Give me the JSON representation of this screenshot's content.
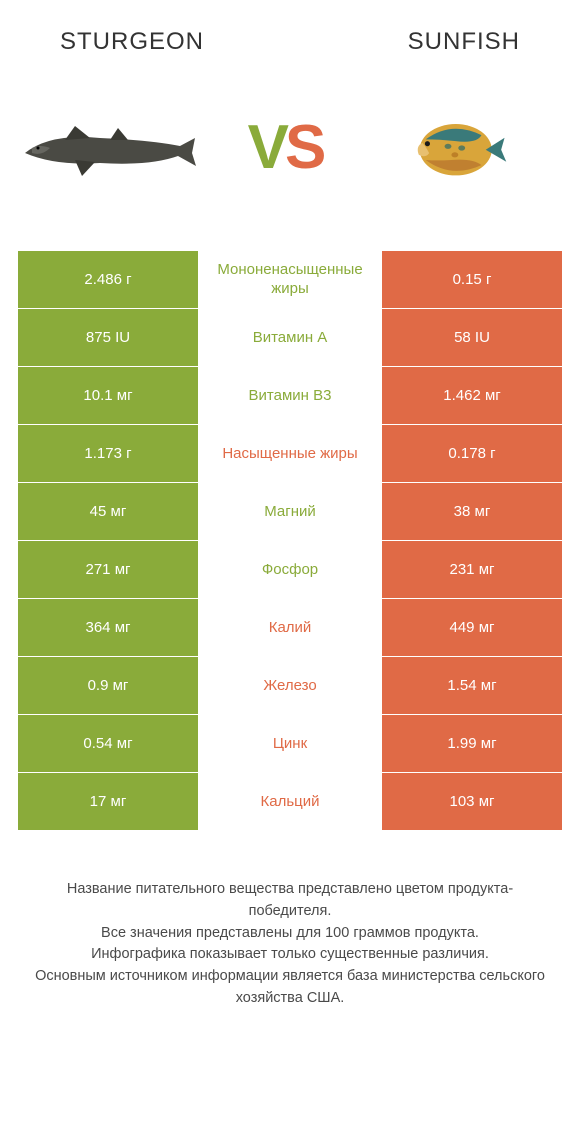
{
  "colors": {
    "left": "#8aab3a",
    "right": "#e06a46",
    "text": "#333333"
  },
  "header": {
    "left_title": "STURGEON",
    "right_title": "SUNFISH",
    "vs_v": "V",
    "vs_s": "S"
  },
  "table": {
    "rows": [
      {
        "left": "2.486 г",
        "label": "Мононенасыщенные жиры",
        "right": "0.15 г",
        "winner": "left"
      },
      {
        "left": "875 IU",
        "label": "Витамин A",
        "right": "58 IU",
        "winner": "left"
      },
      {
        "left": "10.1 мг",
        "label": "Витамин B3",
        "right": "1.462 мг",
        "winner": "left"
      },
      {
        "left": "1.173 г",
        "label": "Насыщенные жиры",
        "right": "0.178 г",
        "winner": "right"
      },
      {
        "left": "45 мг",
        "label": "Магний",
        "right": "38 мг",
        "winner": "left"
      },
      {
        "left": "271 мг",
        "label": "Фосфор",
        "right": "231 мг",
        "winner": "left"
      },
      {
        "left": "364 мг",
        "label": "Калий",
        "right": "449 мг",
        "winner": "right"
      },
      {
        "left": "0.9 мг",
        "label": "Железо",
        "right": "1.54 мг",
        "winner": "right"
      },
      {
        "left": "0.54 мг",
        "label": "Цинк",
        "right": "1.99 мг",
        "winner": "right"
      },
      {
        "left": "17 мг",
        "label": "Кальций",
        "right": "103 мг",
        "winner": "right"
      }
    ]
  },
  "footer": {
    "line1": "Название питательного вещества представлено цветом продукта-победителя.",
    "line2": "Все значения представлены для 100 граммов продукта.",
    "line3": "Инфографика показывает только существенные различия.",
    "line4": "Основным источником информации является база министерства сельского хозяйства США."
  }
}
